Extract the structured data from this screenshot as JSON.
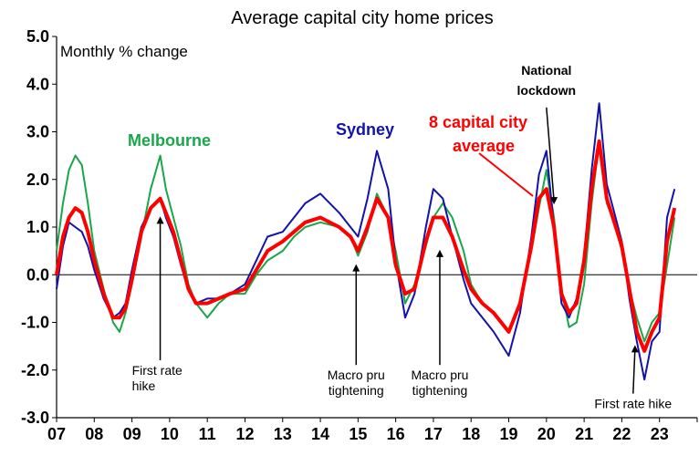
{
  "chart_data": {
    "type": "line",
    "title": "Average capital city home prices",
    "subtitle": "Monthly % change",
    "ylim": [
      -3.0,
      5.0
    ],
    "yticks": [
      "-3.0",
      "-2.0",
      "-1.0",
      "0.0",
      "1.0",
      "2.0",
      "3.0",
      "4.0",
      "5.0"
    ],
    "xticks": [
      "07",
      "08",
      "09",
      "10",
      "11",
      "12",
      "13",
      "14",
      "15",
      "16",
      "17",
      "18",
      "19",
      "20",
      "21",
      "22",
      "23"
    ],
    "xlim": [
      2007.0,
      2024.0
    ],
    "grid": false,
    "series": [
      {
        "name": "Melbourne",
        "color": "#1aa64a",
        "x": [
          2007.0,
          2007.17,
          2007.33,
          2007.5,
          2007.67,
          2007.83,
          2008.0,
          2008.25,
          2008.5,
          2008.67,
          2008.83,
          2009.0,
          2009.25,
          2009.5,
          2009.75,
          2009.9,
          2010.1,
          2010.3,
          2010.5,
          2010.7,
          2011.0,
          2011.3,
          2011.6,
          2012.0,
          2012.3,
          2012.6,
          2013.0,
          2013.3,
          2013.6,
          2014.0,
          2014.5,
          2014.8,
          2015.0,
          2015.25,
          2015.5,
          2015.8,
          2016.0,
          2016.25,
          2016.5,
          2016.8,
          2017.0,
          2017.25,
          2017.5,
          2017.8,
          2018.0,
          2018.3,
          2018.6,
          2019.0,
          2019.3,
          2019.6,
          2019.8,
          2020.0,
          2020.2,
          2020.4,
          2020.6,
          2020.8,
          2021.0,
          2021.2,
          2021.4,
          2021.6,
          2021.8,
          2022.0,
          2022.2,
          2022.4,
          2022.6,
          2022.8,
          2023.0,
          2023.2,
          2023.4
        ],
        "y": [
          0.5,
          1.5,
          2.2,
          2.5,
          2.3,
          1.5,
          0.5,
          -0.3,
          -1.0,
          -1.2,
          -0.8,
          -0.2,
          0.8,
          1.8,
          2.5,
          1.8,
          1.2,
          0.6,
          -0.2,
          -0.6,
          -0.9,
          -0.6,
          -0.4,
          -0.4,
          0.0,
          0.3,
          0.5,
          0.8,
          1.0,
          1.1,
          1.0,
          0.8,
          0.4,
          0.9,
          1.7,
          1.2,
          0.5,
          -0.6,
          -0.2,
          0.6,
          1.2,
          1.5,
          1.2,
          0.5,
          -0.2,
          -0.6,
          -0.8,
          -1.2,
          -0.6,
          0.5,
          1.4,
          2.2,
          1.2,
          -0.3,
          -1.1,
          -1.0,
          -0.2,
          1.5,
          2.8,
          1.5,
          1.1,
          0.5,
          -0.3,
          -0.9,
          -1.4,
          -1.0,
          -0.8,
          0.2,
          1.2
        ]
      },
      {
        "name": "Sydney",
        "color": "#1313a8",
        "x": [
          2007.0,
          2007.17,
          2007.33,
          2007.5,
          2007.67,
          2007.83,
          2008.0,
          2008.25,
          2008.5,
          2008.67,
          2008.83,
          2009.0,
          2009.25,
          2009.5,
          2009.75,
          2009.9,
          2010.1,
          2010.3,
          2010.5,
          2010.7,
          2011.0,
          2011.3,
          2011.6,
          2012.0,
          2012.3,
          2012.6,
          2013.0,
          2013.3,
          2013.6,
          2014.0,
          2014.5,
          2014.8,
          2015.0,
          2015.25,
          2015.5,
          2015.8,
          2016.0,
          2016.25,
          2016.5,
          2016.8,
          2017.0,
          2017.25,
          2017.5,
          2017.8,
          2018.0,
          2018.3,
          2018.6,
          2019.0,
          2019.3,
          2019.6,
          2019.8,
          2020.0,
          2020.2,
          2020.4,
          2020.6,
          2020.8,
          2021.0,
          2021.2,
          2021.4,
          2021.6,
          2021.8,
          2022.0,
          2022.2,
          2022.4,
          2022.6,
          2022.8,
          2023.0,
          2023.2,
          2023.4
        ],
        "y": [
          -0.3,
          0.6,
          1.1,
          1.0,
          0.9,
          0.6,
          0.1,
          -0.5,
          -0.9,
          -0.8,
          -0.6,
          0.1,
          1.0,
          1.4,
          1.6,
          1.2,
          0.8,
          0.2,
          -0.3,
          -0.6,
          -0.5,
          -0.5,
          -0.4,
          -0.2,
          0.3,
          0.8,
          0.9,
          1.2,
          1.5,
          1.7,
          1.3,
          1.0,
          0.8,
          1.6,
          2.6,
          1.8,
          0.3,
          -0.9,
          -0.4,
          1.0,
          1.8,
          1.6,
          0.8,
          -0.1,
          -0.6,
          -0.9,
          -1.2,
          -1.7,
          -0.8,
          0.8,
          2.1,
          2.6,
          1.0,
          -0.6,
          -0.9,
          -0.5,
          0.4,
          2.2,
          3.6,
          1.9,
          1.3,
          0.7,
          -0.5,
          -1.4,
          -2.2,
          -1.4,
          -1.2,
          1.2,
          1.8
        ]
      },
      {
        "name": "8 capital city average",
        "color": "#ff0000",
        "x": [
          2007.0,
          2007.17,
          2007.33,
          2007.5,
          2007.67,
          2007.83,
          2008.0,
          2008.25,
          2008.5,
          2008.67,
          2008.83,
          2009.0,
          2009.25,
          2009.5,
          2009.75,
          2009.9,
          2010.1,
          2010.3,
          2010.5,
          2010.7,
          2011.0,
          2011.3,
          2011.6,
          2012.0,
          2012.3,
          2012.6,
          2013.0,
          2013.3,
          2013.6,
          2014.0,
          2014.5,
          2014.8,
          2015.0,
          2015.25,
          2015.5,
          2015.8,
          2016.0,
          2016.25,
          2016.5,
          2016.8,
          2017.0,
          2017.25,
          2017.5,
          2017.8,
          2018.0,
          2018.3,
          2018.6,
          2019.0,
          2019.3,
          2019.6,
          2019.8,
          2020.0,
          2020.2,
          2020.4,
          2020.6,
          2020.8,
          2021.0,
          2021.2,
          2021.4,
          2021.6,
          2021.8,
          2022.0,
          2022.2,
          2022.4,
          2022.6,
          2022.8,
          2023.0,
          2023.2,
          2023.4
        ],
        "y": [
          0.0,
          0.8,
          1.2,
          1.4,
          1.3,
          0.9,
          0.3,
          -0.4,
          -0.9,
          -0.9,
          -0.7,
          -0.1,
          0.9,
          1.4,
          1.6,
          1.3,
          0.9,
          0.3,
          -0.3,
          -0.6,
          -0.6,
          -0.5,
          -0.4,
          -0.3,
          0.1,
          0.5,
          0.7,
          0.9,
          1.1,
          1.2,
          1.0,
          0.8,
          0.5,
          1.0,
          1.6,
          1.2,
          0.2,
          -0.4,
          -0.3,
          0.7,
          1.2,
          1.2,
          0.8,
          0.1,
          -0.3,
          -0.6,
          -0.8,
          -1.2,
          -0.6,
          0.6,
          1.6,
          1.8,
          1.0,
          -0.4,
          -0.8,
          -0.6,
          0.3,
          1.8,
          2.8,
          1.6,
          1.1,
          0.6,
          -0.3,
          -1.2,
          -1.6,
          -1.2,
          -0.9,
          0.7,
          1.4
        ]
      }
    ],
    "annotations": [
      {
        "lines": [
          "First rate",
          "hike"
        ],
        "target": [
          2009.75,
          1.3
        ],
        "text_at": [
          2009.0,
          -2.1
        ]
      },
      {
        "lines": [
          "Macro pru",
          "tightening"
        ],
        "target": [
          2014.95,
          0.3
        ],
        "text_at": [
          2014.95,
          -2.2
        ]
      },
      {
        "lines": [
          "Macro pru",
          "tightening"
        ],
        "target": [
          2017.17,
          0.6
        ],
        "text_at": [
          2017.17,
          -2.2
        ]
      },
      {
        "lines": [
          "National",
          "lockdown"
        ],
        "target": [
          2020.2,
          1.4
        ],
        "text_at": [
          2020.0,
          4.2
        ]
      },
      {
        "lines": [
          "First rate hike"
        ],
        "target": [
          2022.35,
          -1.4
        ],
        "text_at": [
          2022.3,
          -2.8
        ]
      }
    ],
    "labels": {
      "melbourne": "Melbourne",
      "sydney": "Sydney",
      "avg_line1": "8 capital city",
      "avg_line2": "average"
    }
  }
}
